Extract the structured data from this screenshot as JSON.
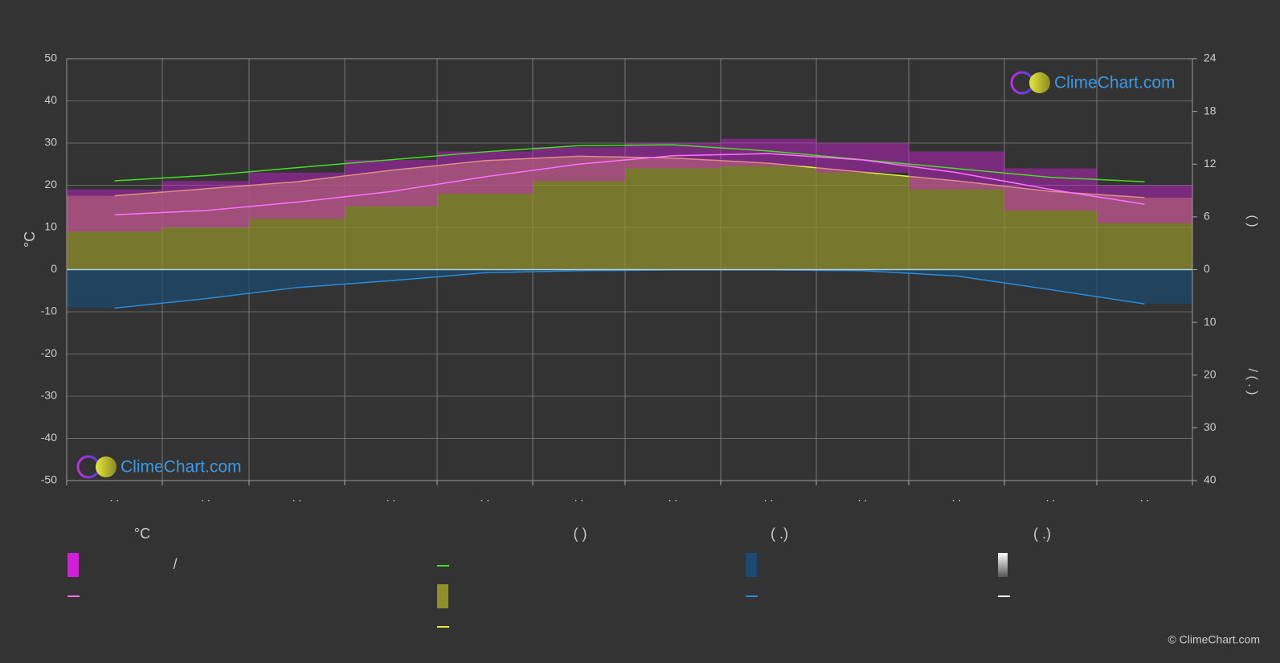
{
  "chart_data": {
    "type": "line",
    "y_label": "°C",
    "y2_label": "(          )",
    "y3_label": "/       (  .  )",
    "categories": [
      ". .",
      ". .",
      ". .",
      ". .",
      ". .",
      ". .",
      ". .",
      ". .",
      ". .",
      ". .",
      ". .",
      ". ."
    ],
    "ylim": [
      -50,
      50
    ],
    "yticks": [
      -50,
      -40,
      -30,
      -20,
      -10,
      0,
      10,
      20,
      30,
      40,
      50
    ],
    "y2lim": [
      0,
      24
    ],
    "y2ticks": [
      0,
      6,
      12,
      18,
      24
    ],
    "y3lim": [
      0,
      40
    ],
    "y3ticks": [
      10,
      20,
      30,
      40
    ],
    "grid": true,
    "series": [
      {
        "type": "band",
        "color": "#d020d8",
        "low": [
          9,
          10,
          12,
          15,
          18,
          21,
          24,
          24.5,
          23,
          19,
          14,
          11
        ],
        "high": [
          19,
          21,
          23,
          26,
          28,
          29,
          30,
          31,
          30,
          28,
          24,
          20
        ]
      },
      {
        "type": "line",
        "color": "#ff70ff",
        "values": [
          13,
          14,
          16,
          18.5,
          22,
          25,
          27,
          27.5,
          26,
          23,
          19,
          15.5
        ]
      },
      {
        "type": "line",
        "axis": "y2",
        "color": "#44dd22",
        "values": [
          10.1,
          10.7,
          11.6,
          12.5,
          13.4,
          14.1,
          14.2,
          13.5,
          12.5,
          11.5,
          10.5,
          10.0
        ]
      },
      {
        "type": "area",
        "axis": "y2",
        "color": "#e8e840",
        "fill": "#8f8f2c",
        "values": [
          8.4,
          9.2,
          10.0,
          11.3,
          12.4,
          12.9,
          12.7,
          12.1,
          11.1,
          10.1,
          8.9,
          8.2
        ]
      },
      {
        "type": "area",
        "axis": "y3",
        "color": "#2a8cdc",
        "fill": "#1d4a6e",
        "values": [
          7.3,
          5.5,
          3.4,
          2.1,
          0.6,
          0.2,
          0.05,
          0.05,
          0.2,
          1.2,
          3.8,
          6.5
        ]
      }
    ],
    "legend_headers": [
      "°C",
      "(          )",
      "(   .)",
      "(   .)"
    ],
    "legend_texts": [
      "/"
    ],
    "logo": "ClimeChart.com",
    "copyright": "© ClimeChart.com"
  }
}
